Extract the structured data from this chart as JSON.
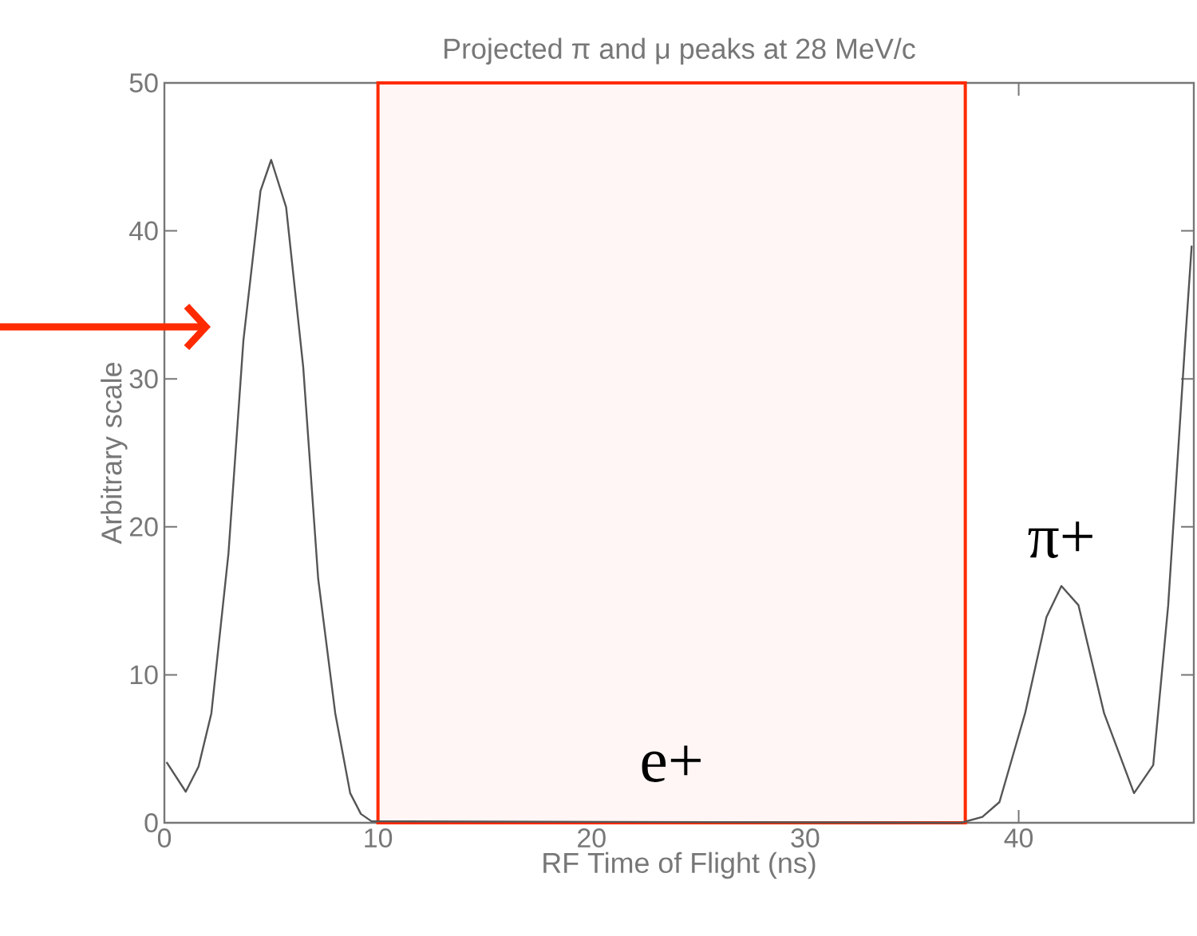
{
  "chart_data": {
    "type": "line",
    "title": "Projected π and μ peaks at 28 MeV/c",
    "xlabel": "RF Time of Flight (ns)",
    "ylabel": "Arbitrary scale",
    "x": [
      0.1,
      1.0,
      1.6,
      2.2,
      3.0,
      3.7,
      4.5,
      5.0,
      5.7,
      6.5,
      7.2,
      8.0,
      8.7,
      9.2,
      9.7,
      37.3,
      38.3,
      39.1,
      40.3,
      41.3,
      42.0,
      42.8,
      44.0,
      45.4,
      46.3,
      47.0,
      47.8,
      48.1
    ],
    "series": [
      {
        "color": "#555555",
        "values": [
          4.1,
          2.1,
          3.8,
          7.4,
          18.2,
          32.6,
          42.7,
          44.8,
          41.6,
          30.8,
          16.5,
          7.4,
          2.0,
          0.6,
          0.1,
          0,
          0.4,
          1.4,
          7.4,
          13.9,
          16,
          14.7,
          7.4,
          2.0,
          3.9,
          14.7,
          32.6,
          39
        ]
      }
    ],
    "xlim": [
      0,
      48.2
    ],
    "ylim": [
      0,
      50
    ],
    "xticks": [
      0,
      10,
      20,
      30,
      40
    ],
    "yticks": [
      0,
      10,
      20,
      30,
      40,
      50
    ],
    "bands": [
      {
        "axis": "x",
        "from": 10,
        "to": 37.5,
        "label": "e+",
        "color": "#ff2a00"
      }
    ],
    "annotations": [
      {
        "text": "π+",
        "x": 42.0,
        "y": 16
      }
    ],
    "grid": false,
    "marker": "none",
    "line_style": "solid"
  }
}
